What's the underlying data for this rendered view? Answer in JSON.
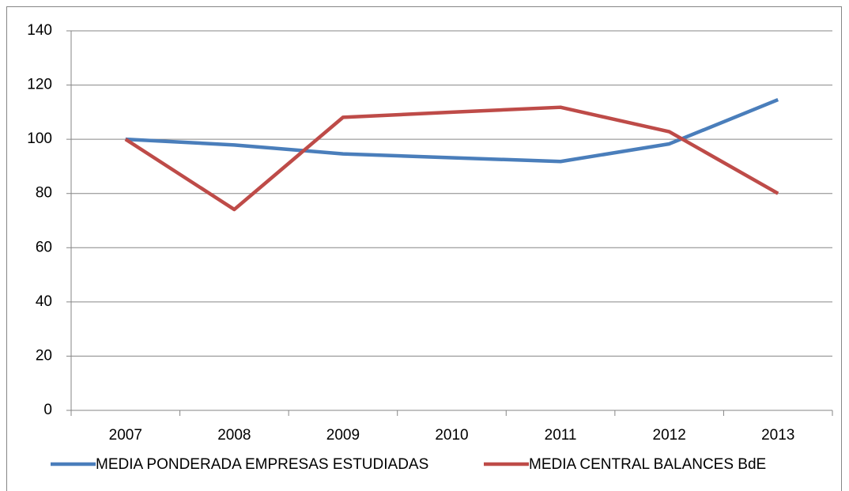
{
  "chart_data": {
    "type": "line",
    "categories": [
      "2007",
      "2008",
      "2009",
      "2010",
      "2011",
      "2012",
      "2013"
    ],
    "series": [
      {
        "name": "MEDIA PONDERADA EMPRESAS ESTUDIADAS",
        "color": "#4a7ebb",
        "values": [
          100,
          97.9,
          94.6,
          93.2,
          91.8,
          98.3,
          114.6
        ]
      },
      {
        "name": "MEDIA CENTRAL BALANCES BdE",
        "color": "#be4b48",
        "values": [
          100,
          74.1,
          108.1,
          110,
          111.8,
          102.8,
          80
        ]
      }
    ],
    "ylim": [
      0,
      140
    ],
    "yticks": [
      0,
      20,
      40,
      60,
      80,
      100,
      120,
      140
    ],
    "grid": true,
    "legend": "bottom"
  }
}
